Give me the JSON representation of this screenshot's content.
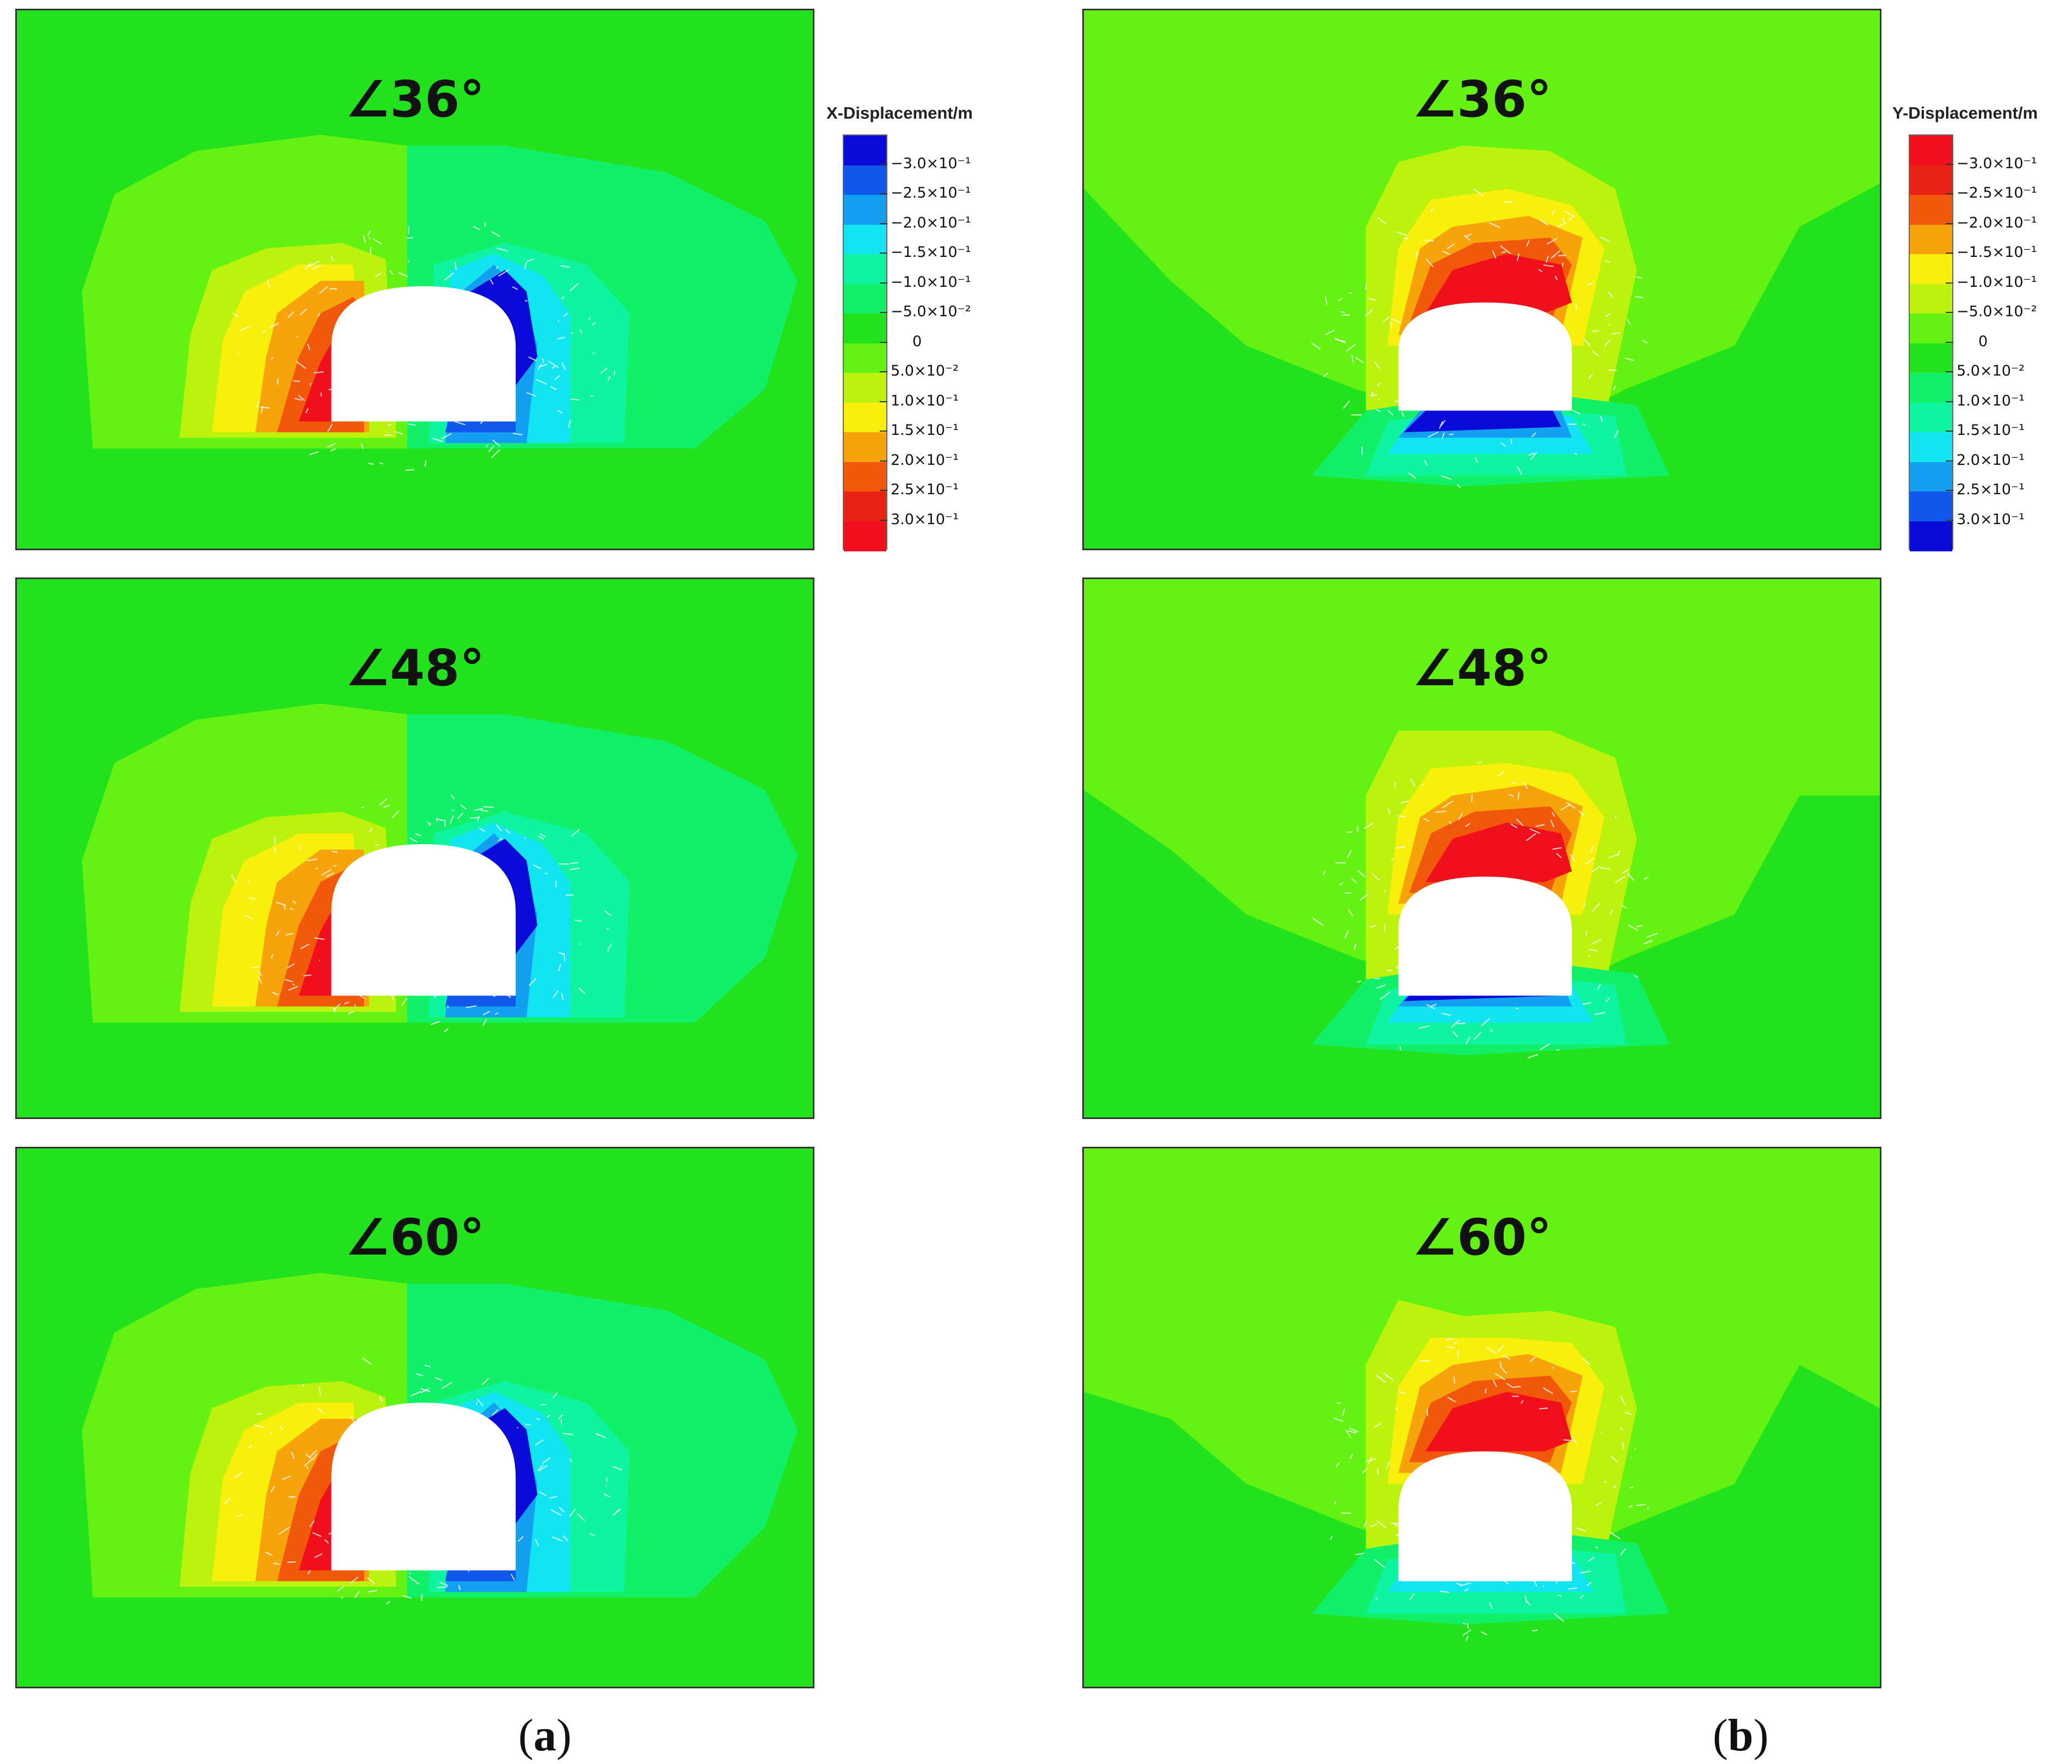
{
  "colors": {
    "background": "#22e21e",
    "cavity": "#ffffff",
    "fracture": "#ffffff"
  },
  "legends": [
    {
      "id": "x",
      "title": "X-Displacement/m",
      "swatches": [
        "#0a0ad8",
        "#1058ec",
        "#14a0f0",
        "#12e4f2",
        "#0ef4a0",
        "#12f06a",
        "#22e21e",
        "#64f212",
        "#bcf20e",
        "#f8f00a",
        "#f7a40c",
        "#f2580c",
        "#ea2414",
        "#f0101c"
      ],
      "labels": [
        "−3.0×10⁻¹",
        "−2.5×10⁻¹",
        "−2.0×10⁻¹",
        "−1.5×10⁻¹",
        "−1.0×10⁻¹",
        "−5.0×10⁻²",
        "0",
        "5.0×10⁻²",
        "1.0×10⁻¹",
        "1.5×10⁻¹",
        "2.0×10⁻¹",
        "2.5×10⁻¹",
        "3.0×10⁻¹"
      ]
    },
    {
      "id": "y",
      "title": "Y-Displacement/m",
      "swatches": [
        "#f0101c",
        "#ea2414",
        "#f2580c",
        "#f7a40c",
        "#f8f00a",
        "#bcf20e",
        "#64f212",
        "#22e21e",
        "#12f06a",
        "#0ef4a0",
        "#12e4f2",
        "#14a0f0",
        "#1058ec",
        "#0a0ad8"
      ],
      "labels": [
        "−3.0×10⁻¹",
        "−2.5×10⁻¹",
        "−2.0×10⁻¹",
        "−1.5×10⁻¹",
        "−1.0×10⁻¹",
        "−5.0×10⁻²",
        "0",
        "5.0×10⁻²",
        "1.0×10⁻¹",
        "1.5×10⁻¹",
        "2.0×10⁻¹",
        "2.5×10⁻¹",
        "3.0×10⁻¹"
      ]
    }
  ],
  "columns": [
    {
      "id": "a",
      "component": "X-Displacement",
      "sub_label": "a"
    },
    {
      "id": "b",
      "component": "Y-Displacement",
      "sub_label": "b"
    }
  ],
  "chart_data": {
    "type": "heatmap",
    "title": "",
    "description_units": "m",
    "value_range": [
      -0.3,
      0.3
    ],
    "panels": [
      {
        "column": "a",
        "angle_label": "∠36°",
        "angle_deg": 36,
        "component": "x",
        "max_positive": 0.3,
        "max_negative": -0.3
      },
      {
        "column": "a",
        "angle_label": "∠48°",
        "angle_deg": 48,
        "component": "x",
        "max_positive": 0.3,
        "max_negative": -0.3
      },
      {
        "column": "a",
        "angle_label": "∠60°",
        "angle_deg": 60,
        "component": "x",
        "max_positive": 0.3,
        "max_negative": -0.3
      },
      {
        "column": "b",
        "angle_label": "∠36°",
        "angle_deg": 36,
        "component": "y",
        "max_positive": 0.3,
        "max_negative": -0.3
      },
      {
        "column": "b",
        "angle_label": "∠48°",
        "angle_deg": 48,
        "component": "y",
        "max_positive": 0.3,
        "max_negative": -0.3
      },
      {
        "column": "b",
        "angle_label": "∠60°",
        "angle_deg": 60,
        "component": "y",
        "max_positive": 0.3,
        "max_negative": -0.3
      }
    ]
  }
}
